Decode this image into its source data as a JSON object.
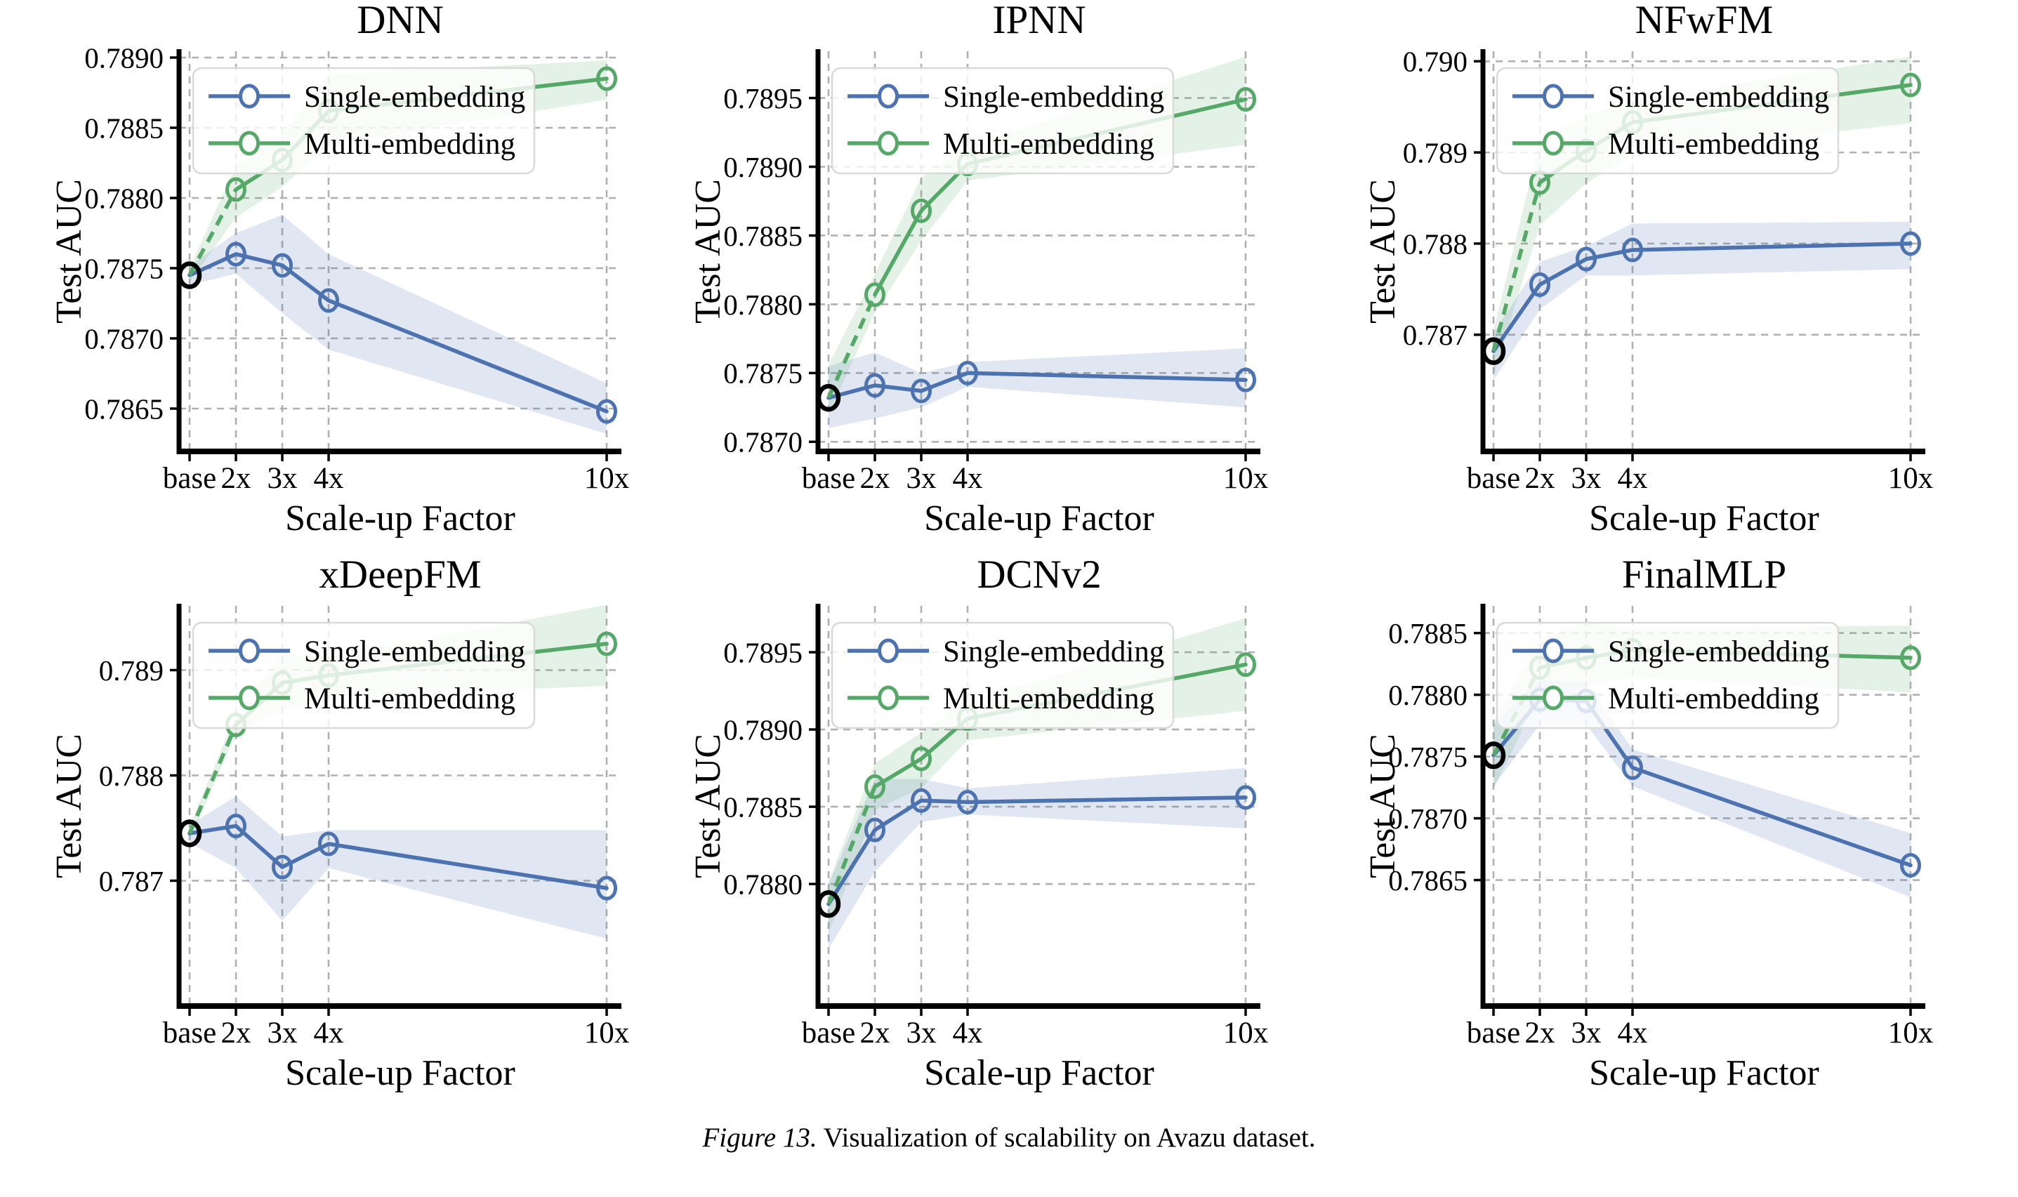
{
  "figure": {
    "caption_label": "Figure 13.",
    "caption_text": " Visualization of scalability on Avazu dataset."
  },
  "colors": {
    "single": "#4C72B0",
    "multi": "#55A868",
    "single_band": "rgba(76,114,176,0.17)",
    "multi_band": "rgba(85,168,104,0.16)",
    "base_marker": "#000000",
    "grid": "#b0b0b0",
    "axis": "#000000",
    "legend_border": "#d9d9d9",
    "legend_bg": "rgba(255,255,255,0.8)"
  },
  "legend": {
    "position": "upper-left",
    "items": [
      {
        "label": "Single-embedding",
        "color_key": "single"
      },
      {
        "label": "Multi-embedding",
        "color_key": "multi"
      }
    ]
  },
  "chart_data": [
    {
      "type": "line",
      "title": "DNN",
      "xlabel": "Scale-up Factor",
      "ylabel": "Test AUC",
      "x_categories": [
        "base",
        "2x",
        "3x",
        "4x",
        "10x"
      ],
      "x_values": [
        1,
        2,
        3,
        4,
        10
      ],
      "ylim": [
        0.786195,
        0.789045
      ],
      "yticks": [
        {
          "label": "0.7865",
          "value": 0.7865
        },
        {
          "label": "0.7870",
          "value": 0.787
        },
        {
          "label": "0.7875",
          "value": 0.7875
        },
        {
          "label": "0.7880",
          "value": 0.788
        },
        {
          "label": "0.7885",
          "value": 0.7885
        },
        {
          "label": "0.7890",
          "value": 0.789
        }
      ],
      "base_point": {
        "x": 1,
        "value": 0.78745
      },
      "series": [
        {
          "name": "Single-embedding",
          "color_key": "single",
          "dashed_first_segment": false,
          "values": [
            0.78745,
            0.7876,
            0.78752,
            0.78727,
            0.78648
          ],
          "band_lower": [
            0.78738,
            0.78746,
            0.78718,
            0.78692,
            0.78632
          ],
          "band_upper": [
            0.78752,
            0.78775,
            0.78788,
            0.7876,
            0.78668
          ]
        },
        {
          "name": "Multi-embedding",
          "color_key": "multi",
          "dashed_first_segment": true,
          "values": [
            0.78745,
            0.78806,
            0.78827,
            0.78862,
            0.78885
          ],
          "band_lower": [
            0.7874,
            0.78786,
            0.78808,
            0.78838,
            0.7887
          ],
          "band_upper": [
            0.7875,
            0.78823,
            0.78845,
            0.78888,
            0.78898
          ]
        }
      ]
    },
    {
      "type": "line",
      "title": "IPNN",
      "xlabel": "Scale-up Factor",
      "ylabel": "Test AUC",
      "x_categories": [
        "base",
        "2x",
        "3x",
        "4x",
        "10x"
      ],
      "x_values": [
        1,
        2,
        3,
        4,
        10
      ],
      "ylim": [
        0.78693,
        0.78984
      ],
      "yticks": [
        {
          "label": "0.7870",
          "value": 0.787
        },
        {
          "label": "0.7875",
          "value": 0.7875
        },
        {
          "label": "0.7880",
          "value": 0.788
        },
        {
          "label": "0.7885",
          "value": 0.7885
        },
        {
          "label": "0.7890",
          "value": 0.789
        },
        {
          "label": "0.7895",
          "value": 0.7895
        }
      ],
      "base_point": {
        "x": 1,
        "value": 0.78732
      },
      "series": [
        {
          "name": "Single-embedding",
          "color_key": "single",
          "dashed_first_segment": false,
          "values": [
            0.78732,
            0.78741,
            0.78737,
            0.7875,
            0.78745
          ],
          "band_lower": [
            0.7871,
            0.78717,
            0.78725,
            0.7874,
            0.78725
          ],
          "band_upper": [
            0.78755,
            0.78765,
            0.7875,
            0.78758,
            0.78768
          ]
        },
        {
          "name": "Multi-embedding",
          "color_key": "multi",
          "dashed_first_segment": true,
          "values": [
            0.78732,
            0.78807,
            0.78868,
            0.78902,
            0.78949
          ],
          "band_lower": [
            0.7872,
            0.78794,
            0.78846,
            0.7889,
            0.78916
          ],
          "band_upper": [
            0.78756,
            0.78822,
            0.78892,
            0.78915,
            0.7898
          ]
        }
      ]
    },
    {
      "type": "line",
      "title": "NFwFM",
      "xlabel": "Scale-up Factor",
      "ylabel": "Test AUC",
      "x_categories": [
        "base",
        "2x",
        "3x",
        "4x",
        "10x"
      ],
      "x_values": [
        1,
        2,
        3,
        4,
        10
      ],
      "ylim": [
        0.78572,
        0.79011
      ],
      "yticks": [
        {
          "label": "0.787",
          "value": 0.787
        },
        {
          "label": "0.788",
          "value": 0.788
        },
        {
          "label": "0.789",
          "value": 0.789
        },
        {
          "label": "0.790",
          "value": 0.79
        }
      ],
      "base_point": {
        "x": 1,
        "value": 0.78682
      },
      "series": [
        {
          "name": "Single-embedding",
          "color_key": "single",
          "dashed_first_segment": false,
          "values": [
            0.78682,
            0.78755,
            0.78783,
            0.78793,
            0.788
          ],
          "band_lower": [
            0.7865,
            0.78728,
            0.78765,
            0.78765,
            0.78772
          ],
          "band_upper": [
            0.78702,
            0.7878,
            0.78797,
            0.78822,
            0.78824
          ]
        },
        {
          "name": "Multi-embedding",
          "color_key": "multi",
          "dashed_first_segment": true,
          "values": [
            0.78682,
            0.78867,
            0.78902,
            0.78933,
            0.78974
          ],
          "band_lower": [
            0.78655,
            0.7882,
            0.78866,
            0.78898,
            0.78932
          ],
          "band_upper": [
            0.78705,
            0.78912,
            0.7894,
            0.78958,
            0.79005
          ]
        }
      ]
    },
    {
      "type": "line",
      "title": "xDeepFM",
      "xlabel": "Scale-up Factor",
      "ylabel": "Test AUC",
      "x_categories": [
        "base",
        "2x",
        "3x",
        "4x",
        "10x"
      ],
      "x_values": [
        1,
        2,
        3,
        4,
        10
      ],
      "ylim": [
        0.78581,
        0.78961
      ],
      "yticks": [
        {
          "label": "0.787",
          "value": 0.787
        },
        {
          "label": "0.788",
          "value": 0.788
        },
        {
          "label": "0.789",
          "value": 0.789
        }
      ],
      "base_point": {
        "x": 1,
        "value": 0.78745
      },
      "series": [
        {
          "name": "Single-embedding",
          "color_key": "single",
          "dashed_first_segment": false,
          "values": [
            0.78745,
            0.78752,
            0.78713,
            0.78735,
            0.78693
          ],
          "band_lower": [
            0.78736,
            0.78712,
            0.78662,
            0.78712,
            0.78645
          ],
          "band_upper": [
            0.78753,
            0.7878,
            0.78742,
            0.78748,
            0.78748
          ]
        },
        {
          "name": "Multi-embedding",
          "color_key": "multi",
          "dashed_first_segment": true,
          "values": [
            0.78745,
            0.78848,
            0.78888,
            0.78895,
            0.78925
          ],
          "band_lower": [
            0.78738,
            0.7884,
            0.78862,
            0.78875,
            0.78885
          ],
          "band_upper": [
            0.78752,
            0.78858,
            0.78915,
            0.78912,
            0.78962
          ]
        }
      ]
    },
    {
      "type": "line",
      "title": "DCNv2",
      "xlabel": "Scale-up Factor",
      "ylabel": "Test AUC",
      "x_categories": [
        "base",
        "2x",
        "3x",
        "4x",
        "10x"
      ],
      "x_values": [
        1,
        2,
        3,
        4,
        10
      ],
      "ylim": [
        0.78721,
        0.7898
      ],
      "yticks": [
        {
          "label": "0.7880",
          "value": 0.788
        },
        {
          "label": "0.7885",
          "value": 0.7885
        },
        {
          "label": "0.7890",
          "value": 0.789
        },
        {
          "label": "0.7895",
          "value": 0.7895
        }
      ],
      "base_point": {
        "x": 1,
        "value": 0.78787
      },
      "series": [
        {
          "name": "Single-embedding",
          "color_key": "single",
          "dashed_first_segment": false,
          "values": [
            0.78787,
            0.78835,
            0.78854,
            0.78853,
            0.78856
          ],
          "band_lower": [
            0.78758,
            0.78808,
            0.7884,
            0.78845,
            0.78836
          ],
          "band_upper": [
            0.788,
            0.78868,
            0.78868,
            0.78862,
            0.78875
          ]
        },
        {
          "name": "Multi-embedding",
          "color_key": "multi",
          "dashed_first_segment": true,
          "values": [
            0.78787,
            0.78863,
            0.78881,
            0.78907,
            0.78942
          ],
          "band_lower": [
            0.78768,
            0.78848,
            0.78862,
            0.78893,
            0.78912
          ],
          "band_upper": [
            0.78802,
            0.78878,
            0.78898,
            0.78918,
            0.78972
          ]
        }
      ]
    },
    {
      "type": "line",
      "title": "FinalMLP",
      "xlabel": "Scale-up Factor",
      "ylabel": "Test AUC",
      "x_categories": [
        "base",
        "2x",
        "3x",
        "4x",
        "10x"
      ],
      "x_values": [
        1,
        2,
        3,
        4,
        10
      ],
      "ylim": [
        0.78548,
        0.78872
      ],
      "yticks": [
        {
          "label": "0.7865",
          "value": 0.7865
        },
        {
          "label": "0.7870",
          "value": 0.787
        },
        {
          "label": "0.7875",
          "value": 0.7875
        },
        {
          "label": "0.7880",
          "value": 0.788
        },
        {
          "label": "0.7885",
          "value": 0.7885
        }
      ],
      "base_point": {
        "x": 1,
        "value": 0.78751
      },
      "series": [
        {
          "name": "Single-embedding",
          "color_key": "single",
          "dashed_first_segment": false,
          "values": [
            0.78751,
            0.78796,
            0.78795,
            0.78741,
            0.78662
          ],
          "band_lower": [
            0.78726,
            0.78776,
            0.78776,
            0.78726,
            0.78636
          ],
          "band_upper": [
            0.78776,
            0.78812,
            0.7881,
            0.78756,
            0.78688
          ]
        },
        {
          "name": "Multi-embedding",
          "color_key": "multi",
          "dashed_first_segment": true,
          "values": [
            0.78751,
            0.78822,
            0.7883,
            0.78836,
            0.7883
          ],
          "band_lower": [
            0.78724,
            0.788,
            0.78808,
            0.78814,
            0.78802
          ],
          "band_upper": [
            0.78778,
            0.78846,
            0.78858,
            0.78854,
            0.78856
          ]
        }
      ]
    }
  ]
}
